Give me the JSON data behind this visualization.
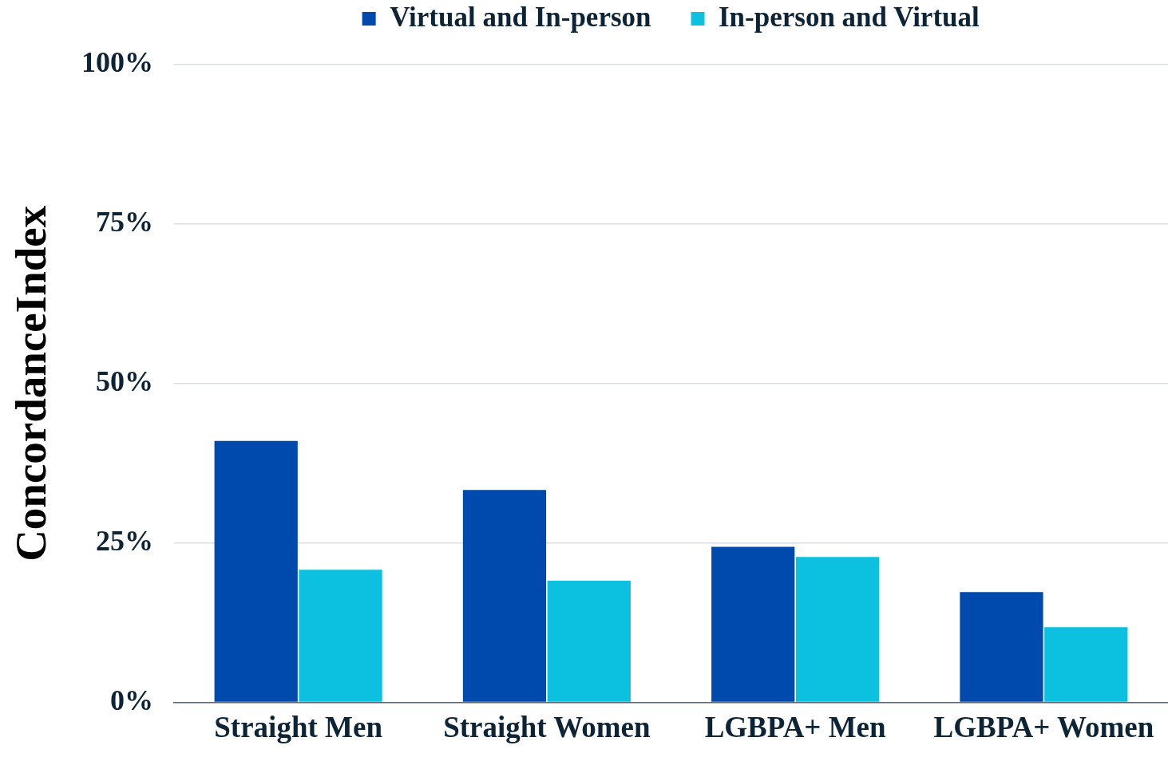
{
  "chart_data": {
    "type": "bar",
    "ylabel": "ConcordanceIndex",
    "categories": [
      "Straight Men",
      "Straight Women",
      "LGBPA+ Men",
      "LGBPA+ Women"
    ],
    "series": [
      {
        "name": "Virtual and In-person",
        "color": "#004aad",
        "values": [
          41.0,
          33.3,
          24.4,
          17.3
        ]
      },
      {
        "name": "In-person and Virtual",
        "color": "#0cc0df",
        "values": [
          20.8,
          19.1,
          22.8,
          11.8
        ]
      }
    ],
    "ylim": [
      0,
      100
    ],
    "yticks": [
      {
        "value": 0,
        "label": "0%"
      },
      {
        "value": 25,
        "label": "25%"
      },
      {
        "value": 50,
        "label": "50%"
      },
      {
        "value": 75,
        "label": "75%"
      },
      {
        "value": 100,
        "label": "100%"
      }
    ],
    "grid": "y",
    "legend": "top"
  }
}
